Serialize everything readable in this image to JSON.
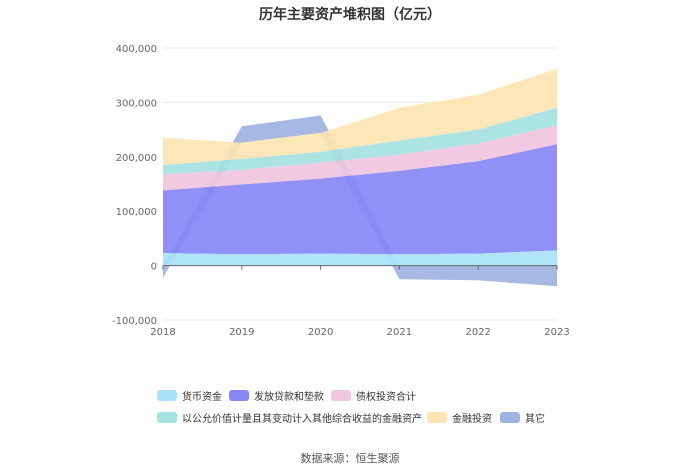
{
  "chart_data": {
    "type": "area",
    "stacked": true,
    "title": "历年主要资产堆积图（亿元）",
    "xlabel": "",
    "ylabel": "",
    "categories": [
      "2018",
      "2019",
      "2020",
      "2021",
      "2022",
      "2023"
    ],
    "y_ticks": [
      "400,000",
      "300,000",
      "200,000",
      "100,000",
      "0",
      "-100,000"
    ],
    "ylim": [
      -100000,
      400000
    ],
    "grid": true,
    "legend_position": "bottom",
    "series": [
      {
        "name": "货币资金",
        "color": "#a9e3f9",
        "values": [
          23000,
          21000,
          22000,
          21000,
          22000,
          28000
        ]
      },
      {
        "name": "发放贷款和垫款",
        "color": "#8787f5",
        "values": [
          115000,
          128000,
          138000,
          153000,
          170000,
          195000
        ]
      },
      {
        "name": "债权投资合计",
        "color": "#f0c6e0",
        "values": [
          30000,
          27000,
          29000,
          30000,
          32000,
          35000
        ]
      },
      {
        "name": "以公允价值计量且其变动计入其他综合收益的金融资产",
        "color": "#a5e2e2",
        "values": [
          17000,
          20000,
          20000,
          26000,
          26000,
          32000
        ]
      },
      {
        "name": "金融投资",
        "color": "#fde4b2",
        "values": [
          50000,
          30000,
          35000,
          60000,
          64000,
          72000
        ]
      },
      {
        "name": "其它",
        "color": "#9fb3e0",
        "values": [
          -22000,
          30000,
          32000,
          -25000,
          -27000,
          -38000
        ]
      }
    ]
  },
  "footer": {
    "source": "数据来源：恒生聚源"
  }
}
